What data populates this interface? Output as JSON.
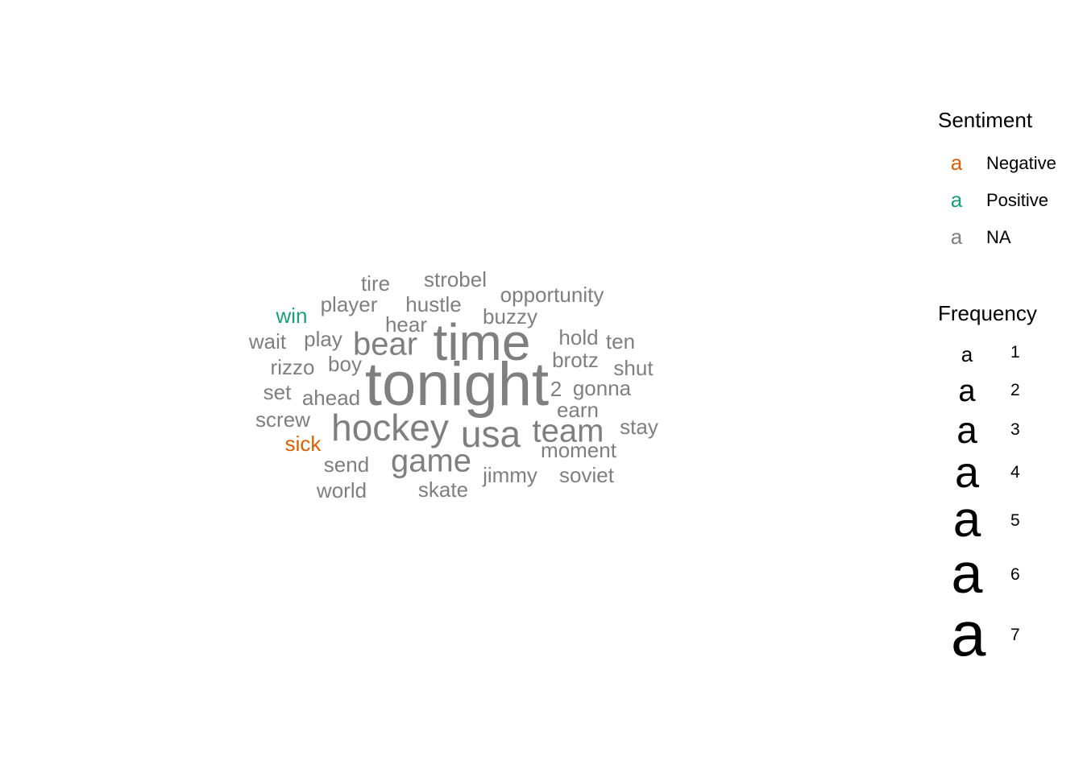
{
  "chart_data": {
    "type": "wordcloud",
    "colors": {
      "Negative": "#D95F02",
      "Positive": "#1B9E77",
      "NA": "#7F7F7F"
    },
    "words": [
      {
        "word": "tonight",
        "freq": 7,
        "sentiment": "NA"
      },
      {
        "word": "time",
        "freq": 6,
        "sentiment": "NA"
      },
      {
        "word": "hockey",
        "freq": 4,
        "sentiment": "NA"
      },
      {
        "word": "usa",
        "freq": 4,
        "sentiment": "NA"
      },
      {
        "word": "bear",
        "freq": 3,
        "sentiment": "NA"
      },
      {
        "word": "game",
        "freq": 3,
        "sentiment": "NA"
      },
      {
        "word": "team",
        "freq": 3,
        "sentiment": "NA"
      },
      {
        "word": "tire",
        "freq": 1,
        "sentiment": "NA"
      },
      {
        "word": "strobel",
        "freq": 1,
        "sentiment": "NA"
      },
      {
        "word": "opportunity",
        "freq": 1,
        "sentiment": "NA"
      },
      {
        "word": "win",
        "freq": 1,
        "sentiment": "Positive"
      },
      {
        "word": "player",
        "freq": 1,
        "sentiment": "NA"
      },
      {
        "word": "hustle",
        "freq": 1,
        "sentiment": "NA"
      },
      {
        "word": "buzzy",
        "freq": 1,
        "sentiment": "NA"
      },
      {
        "word": "hear",
        "freq": 1,
        "sentiment": "NA"
      },
      {
        "word": "wait",
        "freq": 1,
        "sentiment": "NA"
      },
      {
        "word": "play",
        "freq": 1,
        "sentiment": "NA"
      },
      {
        "word": "hold",
        "freq": 1,
        "sentiment": "NA"
      },
      {
        "word": "ten",
        "freq": 1,
        "sentiment": "NA"
      },
      {
        "word": "brotz",
        "freq": 1,
        "sentiment": "NA"
      },
      {
        "word": "rizzo",
        "freq": 1,
        "sentiment": "NA"
      },
      {
        "word": "boy",
        "freq": 1,
        "sentiment": "NA"
      },
      {
        "word": "shut",
        "freq": 1,
        "sentiment": "NA"
      },
      {
        "word": "2",
        "freq": 1,
        "sentiment": "NA"
      },
      {
        "word": "gonna",
        "freq": 1,
        "sentiment": "NA"
      },
      {
        "word": "set",
        "freq": 1,
        "sentiment": "NA"
      },
      {
        "word": "ahead",
        "freq": 1,
        "sentiment": "NA"
      },
      {
        "word": "earn",
        "freq": 1,
        "sentiment": "NA"
      },
      {
        "word": "screw",
        "freq": 1,
        "sentiment": "NA"
      },
      {
        "word": "stay",
        "freq": 1,
        "sentiment": "NA"
      },
      {
        "word": "sick",
        "freq": 1,
        "sentiment": "Negative"
      },
      {
        "word": "moment",
        "freq": 1,
        "sentiment": "NA"
      },
      {
        "word": "send",
        "freq": 1,
        "sentiment": "NA"
      },
      {
        "word": "jimmy",
        "freq": 1,
        "sentiment": "NA"
      },
      {
        "word": "soviet",
        "freq": 1,
        "sentiment": "NA"
      },
      {
        "word": "world",
        "freq": 1,
        "sentiment": "NA"
      },
      {
        "word": "skate",
        "freq": 1,
        "sentiment": "NA"
      }
    ],
    "legend": {
      "sentiment_title": "Sentiment",
      "sentiment_key_glyph": "a",
      "sentiment_items": [
        {
          "label": "Negative",
          "sentiment": "Negative"
        },
        {
          "label": "Positive",
          "sentiment": "Positive"
        },
        {
          "label": "NA",
          "sentiment": "NA"
        }
      ],
      "frequency_title": "Frequency",
      "frequency_key_glyph": "a",
      "frequency_items": [
        {
          "label": "1",
          "freq": 1
        },
        {
          "label": "2",
          "freq": 2
        },
        {
          "label": "3",
          "freq": 3
        },
        {
          "label": "4",
          "freq": 4
        },
        {
          "label": "5",
          "freq": 5
        },
        {
          "label": "6",
          "freq": 6
        },
        {
          "label": "7",
          "freq": 7
        }
      ]
    }
  }
}
